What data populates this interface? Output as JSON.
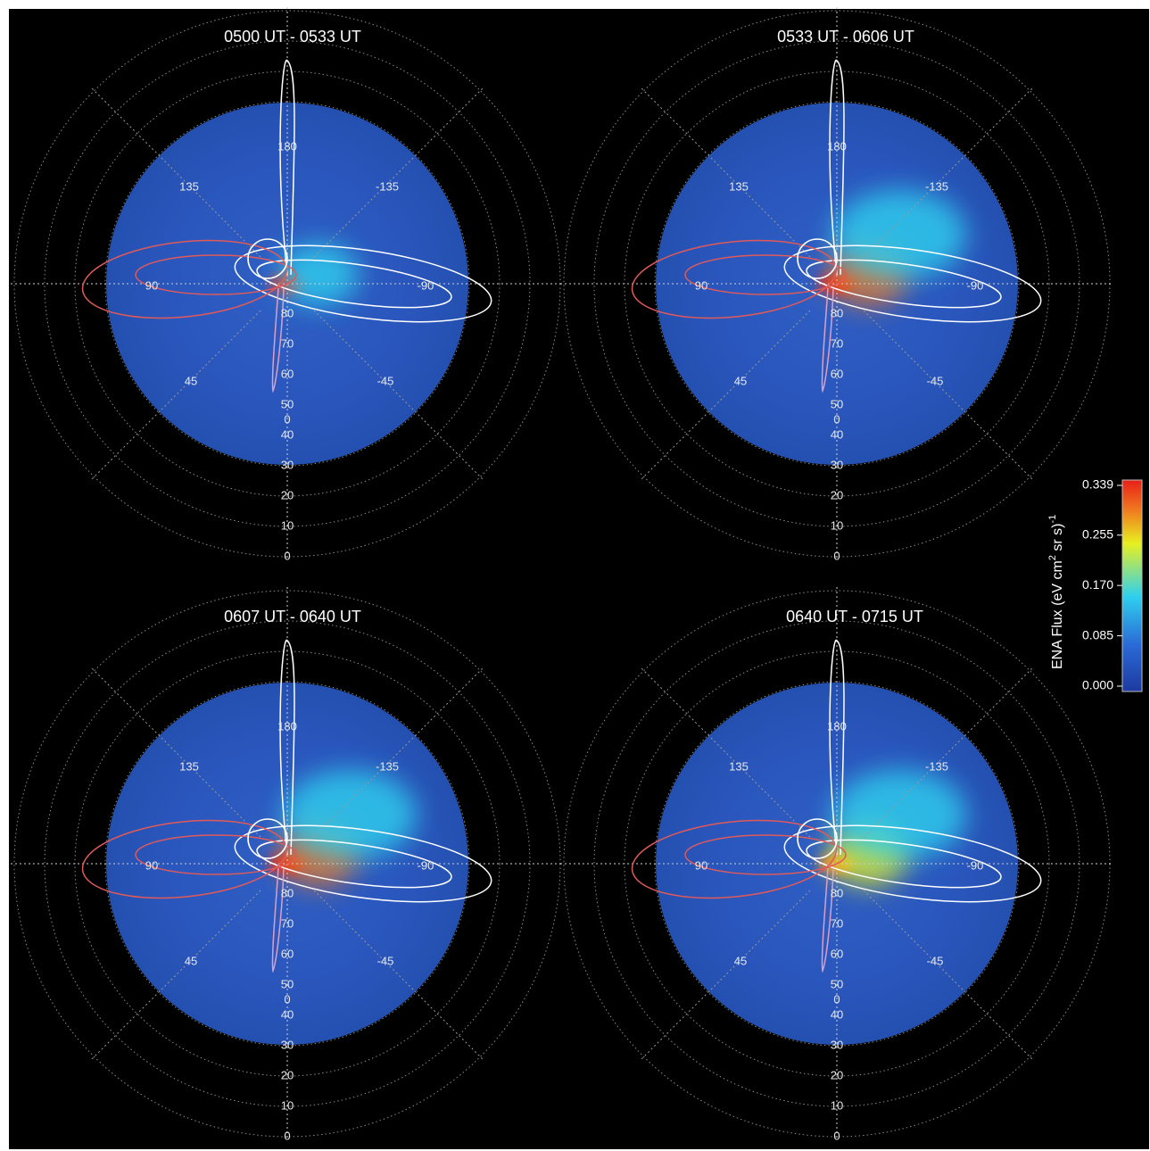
{
  "chart_data": [
    {
      "type": "heatmap",
      "title": "0500 UT - 0533 UT",
      "azimuth_labels": [
        "180",
        "135",
        "-135",
        "90",
        "-90",
        "45",
        "-45",
        "0"
      ],
      "radial_labels_inner": [
        "80",
        "70",
        "60",
        "50"
      ],
      "radial_labels_outer": [
        "40",
        "30",
        "20",
        "10",
        "0"
      ],
      "grid": "dotted",
      "flux_hotspots": [
        {
          "azimuth": 90,
          "elevation": 88,
          "flux": 0.339
        },
        {
          "azimuth": -120,
          "elevation": 75,
          "flux": 0.12
        }
      ],
      "background_flux": 0.03,
      "field_lines": [
        {
          "color": "#ffffff",
          "direction": "180"
        },
        {
          "color": "#ffffff",
          "direction": "-90"
        },
        {
          "color": "#e05a5a",
          "direction": "90"
        },
        {
          "color": "#d9a0c8",
          "direction": "0"
        }
      ]
    },
    {
      "type": "heatmap",
      "title": "0533 UT - 0606 UT",
      "azimuth_labels": [
        "180",
        "135",
        "-135",
        "90",
        "-90",
        "45",
        "-45",
        "0"
      ],
      "radial_labels_inner": [
        "80",
        "70",
        "60",
        "50"
      ],
      "radial_labels_outer": [
        "40",
        "30",
        "20",
        "10",
        "0"
      ],
      "grid": "dotted",
      "flux_hotspots": [
        {
          "azimuth": 90,
          "elevation": 88,
          "flux": 0.3
        },
        {
          "azimuth": -120,
          "elevation": 70,
          "flux": 0.26
        },
        {
          "azimuth": -150,
          "elevation": 65,
          "flux": 0.15
        }
      ],
      "background_flux": 0.03,
      "field_lines": [
        {
          "color": "#ffffff",
          "direction": "180"
        },
        {
          "color": "#ffffff",
          "direction": "-90"
        },
        {
          "color": "#e05a5a",
          "direction": "90"
        },
        {
          "color": "#d9a0c8",
          "direction": "0"
        }
      ]
    },
    {
      "type": "heatmap",
      "title": "0607 UT - 0640 UT",
      "azimuth_labels": [
        "180",
        "135",
        "-135",
        "90",
        "-90",
        "45",
        "-45",
        "0"
      ],
      "radial_labels_inner": [
        "80",
        "70",
        "60",
        "50"
      ],
      "radial_labels_outer": [
        "40",
        "30",
        "20",
        "10",
        "0"
      ],
      "grid": "dotted",
      "flux_hotspots": [
        {
          "azimuth": 90,
          "elevation": 88,
          "flux": 0.3
        },
        {
          "azimuth": -120,
          "elevation": 72,
          "flux": 0.25
        },
        {
          "azimuth": -150,
          "elevation": 60,
          "flux": 0.15
        }
      ],
      "background_flux": 0.03,
      "field_lines": [
        {
          "color": "#ffffff",
          "direction": "180"
        },
        {
          "color": "#ffffff",
          "direction": "-90"
        },
        {
          "color": "#e05a5a",
          "direction": "90"
        },
        {
          "color": "#d9a0c8",
          "direction": "0"
        }
      ]
    },
    {
      "type": "heatmap",
      "title": "0640 UT - 0715 UT",
      "azimuth_labels": [
        "180",
        "135",
        "-135",
        "90",
        "-90",
        "45",
        "-45",
        "0"
      ],
      "radial_labels_inner": [
        "80",
        "70",
        "60",
        "50"
      ],
      "radial_labels_outer": [
        "40",
        "30",
        "20",
        "10",
        "0"
      ],
      "grid": "dotted",
      "flux_hotspots": [
        {
          "azimuth": 90,
          "elevation": 88,
          "flux": 0.27
        },
        {
          "azimuth": -120,
          "elevation": 72,
          "flux": 0.2
        },
        {
          "azimuth": -150,
          "elevation": 60,
          "flux": 0.14
        }
      ],
      "background_flux": 0.03,
      "field_lines": [
        {
          "color": "#ffffff",
          "direction": "180"
        },
        {
          "color": "#ffffff",
          "direction": "-90"
        },
        {
          "color": "#e05a5a",
          "direction": "90"
        },
        {
          "color": "#d9a0c8",
          "direction": "0"
        }
      ]
    }
  ],
  "colorbar": {
    "title_main": "ENA Flux (eV cm",
    "title_sup2": "2",
    "title_mid": " sr s)",
    "title_sup_neg1": "-1",
    "ticks": [
      "0.339",
      "0.255",
      "0.170",
      "0.085",
      "0.000"
    ],
    "tick_values": [
      0.339,
      0.255,
      0.17,
      0.085,
      0.0
    ],
    "range": [
      0.0,
      0.339
    ],
    "colormap": [
      "#1d3aa0",
      "#2a6ad6",
      "#2fd0ee",
      "#e8f020",
      "#f07820",
      "#e82018"
    ]
  }
}
